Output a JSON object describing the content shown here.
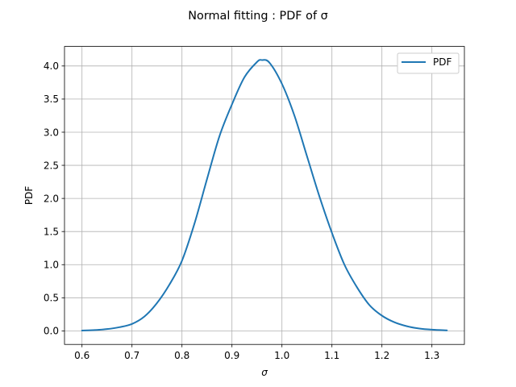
{
  "chart_data": {
    "type": "line",
    "title": "Normal fitting : PDF of σ",
    "xlabel": "σ",
    "ylabel": "PDF",
    "xlim": [
      0.565,
      1.365
    ],
    "ylim": [
      -0.2045,
      4.295
    ],
    "xticks": [
      0.6,
      0.7,
      0.8,
      0.9,
      1.0,
      1.1,
      1.2,
      1.3
    ],
    "xtick_labels": [
      "0.6",
      "0.7",
      "0.8",
      "0.9",
      "1.0",
      "1.1",
      "1.2",
      "1.3"
    ],
    "yticks": [
      0.0,
      0.5,
      1.0,
      1.5,
      2.0,
      2.5,
      3.0,
      3.5,
      4.0
    ],
    "ytick_labels": [
      "0.0",
      "0.5",
      "1.0",
      "1.5",
      "2.0",
      "2.5",
      "3.0",
      "3.5",
      "4.0"
    ],
    "grid": true,
    "legend_position": "top-right",
    "series": [
      {
        "name": "PDF",
        "color": "#1f77b4",
        "x": [
          0.6,
          0.625,
          0.65,
          0.675,
          0.7,
          0.725,
          0.75,
          0.775,
          0.8,
          0.825,
          0.85,
          0.875,
          0.9,
          0.925,
          0.95,
          0.96,
          0.975,
          1.0,
          1.025,
          1.05,
          1.075,
          1.1,
          1.125,
          1.15,
          1.175,
          1.2,
          1.225,
          1.25,
          1.275,
          1.3,
          1.33
        ],
        "y": [
          0.005,
          0.012,
          0.027,
          0.056,
          0.105,
          0.218,
          0.42,
          0.7,
          1.06,
          1.62,
          2.29,
          2.94,
          3.42,
          3.83,
          4.06,
          4.09,
          4.05,
          3.73,
          3.25,
          2.64,
          2.03,
          1.48,
          1.0,
          0.66,
          0.39,
          0.23,
          0.13,
          0.07,
          0.035,
          0.018,
          0.008
        ]
      }
    ]
  }
}
